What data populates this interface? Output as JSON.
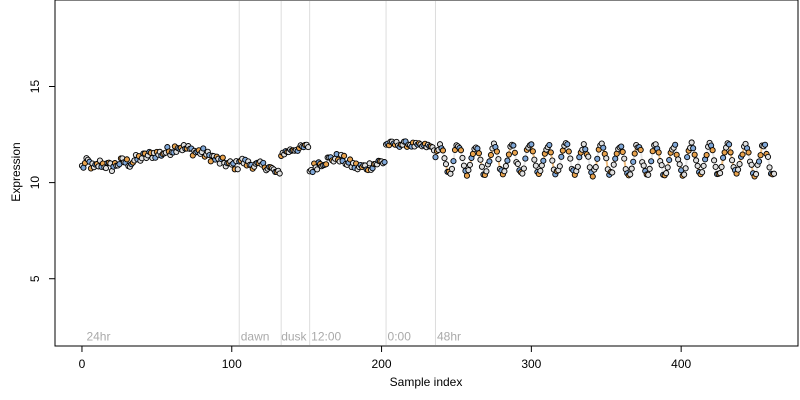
{
  "chart_data": {
    "type": "scatter",
    "xlabel": "Sample index",
    "ylabel": "Expression",
    "xlim": [
      -18,
      478
    ],
    "ylim": [
      1.5,
      19.5
    ],
    "xticks": [
      0,
      100,
      200,
      300,
      400
    ],
    "yticks": [
      5,
      10,
      15
    ],
    "vlines": [
      105,
      133,
      152,
      203,
      236
    ],
    "annotations": [
      {
        "x": 3,
        "text": "24hr"
      },
      {
        "x": 106,
        "text": "dawn"
      },
      {
        "x": 133,
        "text": "dusk"
      },
      {
        "x": 153,
        "text": "12:00"
      },
      {
        "x": 204,
        "text": "0:00"
      },
      {
        "x": 237,
        "text": "48hr"
      }
    ],
    "annotation_y": 2.0,
    "point_colors": {
      "gray": "#e0e0e0",
      "blue": "#7fa7d8",
      "orange": "#e8a24c"
    },
    "segments": [
      {
        "x0": 0,
        "x1": 104,
        "points": [
          [
            0,
            10.8
          ],
          [
            4,
            11.1
          ],
          [
            8,
            10.7
          ],
          [
            12,
            11.0
          ],
          [
            16,
            10.9
          ],
          [
            20,
            10.8
          ],
          [
            24,
            11.0
          ],
          [
            28,
            11.1
          ],
          [
            32,
            11.0
          ],
          [
            36,
            11.2
          ],
          [
            40,
            11.3
          ],
          [
            44,
            11.4
          ],
          [
            48,
            11.5
          ],
          [
            52,
            11.5
          ],
          [
            56,
            11.6
          ],
          [
            60,
            11.7
          ],
          [
            64,
            11.9
          ],
          [
            68,
            11.8
          ],
          [
            72,
            11.7
          ],
          [
            76,
            11.6
          ],
          [
            80,
            11.6
          ],
          [
            84,
            11.4
          ],
          [
            88,
            11.3
          ],
          [
            92,
            11.1
          ],
          [
            96,
            11.0
          ],
          [
            100,
            10.9
          ],
          [
            104,
            10.9
          ]
        ],
        "noise": 0.25,
        "colored": "#f0c89b"
      },
      {
        "x0": 105,
        "x1": 132,
        "points": [
          [
            105,
            11.2
          ],
          [
            110,
            11.0
          ],
          [
            115,
            10.9
          ],
          [
            120,
            10.9
          ],
          [
            125,
            10.8
          ],
          [
            130,
            10.5
          ],
          [
            132,
            10.4
          ]
        ],
        "noise": 0.2,
        "colored": "#7fa7d8"
      },
      {
        "x0": 133,
        "x1": 151,
        "points": [
          [
            133,
            11.5
          ],
          [
            140,
            11.7
          ],
          [
            146,
            11.8
          ],
          [
            151,
            11.9
          ]
        ],
        "noise": 0.15,
        "colored": "#f0c89b"
      },
      {
        "x0": 152,
        "x1": 202,
        "points": [
          [
            152,
            10.6
          ],
          [
            158,
            11.0
          ],
          [
            165,
            11.2
          ],
          [
            172,
            11.3
          ],
          [
            178,
            11.0
          ],
          [
            184,
            10.8
          ],
          [
            190,
            10.8
          ],
          [
            196,
            11.0
          ],
          [
            202,
            11.1
          ]
        ],
        "noise": 0.25,
        "colored": "#7fa7d8"
      },
      {
        "x0": 203,
        "x1": 235,
        "points": [
          [
            203,
            12.0
          ],
          [
            210,
            12.0
          ],
          [
            218,
            12.0
          ],
          [
            225,
            11.9
          ],
          [
            230,
            11.9
          ],
          [
            235,
            11.8
          ]
        ],
        "noise": 0.15,
        "colored": "#e8a24c"
      },
      {
        "x0": 236,
        "x1": 462,
        "points": [
          [
            236,
            11.2
          ],
          [
            462,
            11.2
          ]
        ],
        "noise": 0.15,
        "osc": {
          "amp": 0.75,
          "period": 12
        },
        "colored": "#e8a24c"
      }
    ]
  }
}
